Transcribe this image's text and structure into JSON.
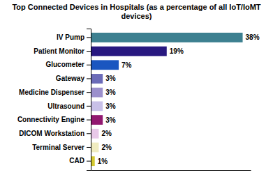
{
  "chart_data": {
    "type": "bar",
    "orientation": "horizontal",
    "title": "Top Connected Devices in Hospitals (as a percentage of all IoT/IoMT devices)",
    "categories": [
      "IV Pump",
      "Patient Monitor",
      "Glucometer",
      "Gateway",
      "Medicine Dispenser",
      "Ultrasound",
      "Connectivity Engine",
      "DICOM Workstation",
      "Terminal Server",
      "CAD"
    ],
    "values": [
      38,
      19,
      7,
      3,
      3,
      3,
      3,
      2,
      2,
      1
    ],
    "value_labels": [
      "38%",
      "19%",
      "7%",
      "3%",
      "3%",
      "3%",
      "3%",
      "2%",
      "2%",
      "1%"
    ],
    "colors": [
      "#3d8090",
      "#281880",
      "#1a56c0",
      "#6b6bb8",
      "#9b8fcc",
      "#c8c0e8",
      "#921870",
      "#e8c8e8",
      "#f0ecc0",
      "#d4c830"
    ],
    "xlim": [
      0,
      40
    ],
    "data_labels": true,
    "tick_labels": "y"
  }
}
